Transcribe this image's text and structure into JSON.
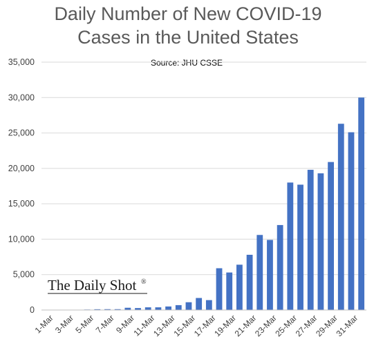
{
  "chart_data": {
    "type": "bar",
    "title_line1": "Daily Number of New COVID-19",
    "title_line2": "Cases in the United States",
    "source": "Source: JHU CSSE",
    "watermark": "The Daily Shot",
    "watermark_mark": "®",
    "xlabel": "",
    "ylabel": "",
    "ylim": [
      0,
      35000
    ],
    "yticks": [
      0,
      5000,
      10000,
      15000,
      20000,
      25000,
      30000,
      35000
    ],
    "ytick_labels": [
      "0",
      "5,000",
      "10,000",
      "15,000",
      "20,000",
      "25,000",
      "30,000",
      "35,000"
    ],
    "grid": true,
    "bar_color": "#4472c4",
    "categories": [
      "1-Mar",
      "2-Mar",
      "3-Mar",
      "4-Mar",
      "5-Mar",
      "6-Mar",
      "7-Mar",
      "8-Mar",
      "9-Mar",
      "10-Mar",
      "11-Mar",
      "12-Mar",
      "13-Mar",
      "14-Mar",
      "15-Mar",
      "16-Mar",
      "17-Mar",
      "18-Mar",
      "19-Mar",
      "20-Mar",
      "21-Mar",
      "22-Mar",
      "23-Mar",
      "24-Mar",
      "25-Mar",
      "26-Mar",
      "27-Mar",
      "28-Mar",
      "29-Mar",
      "30-Mar",
      "31-Mar",
      "1-Apr"
    ],
    "xtick_labels": [
      "1-Mar",
      "",
      "3-Mar",
      "",
      "5-Mar",
      "",
      "7-Mar",
      "",
      "9-Mar",
      "",
      "11-Mar",
      "",
      "13-Mar",
      "",
      "15-Mar",
      "",
      "17-Mar",
      "",
      "19-Mar",
      "",
      "21-Mar",
      "",
      "23-Mar",
      "",
      "25-Mar",
      "",
      "27-Mar",
      "",
      "29-Mar",
      "",
      "31-Mar",
      ""
    ],
    "values": [
      0,
      20,
      20,
      30,
      70,
      110,
      120,
      120,
      320,
      280,
      380,
      380,
      500,
      690,
      1100,
      1700,
      1400,
      5900,
      5300,
      6400,
      7800,
      10600,
      9900,
      12000,
      18000,
      17700,
      19800,
      19300,
      20900,
      26300,
      25100,
      30000
    ]
  }
}
